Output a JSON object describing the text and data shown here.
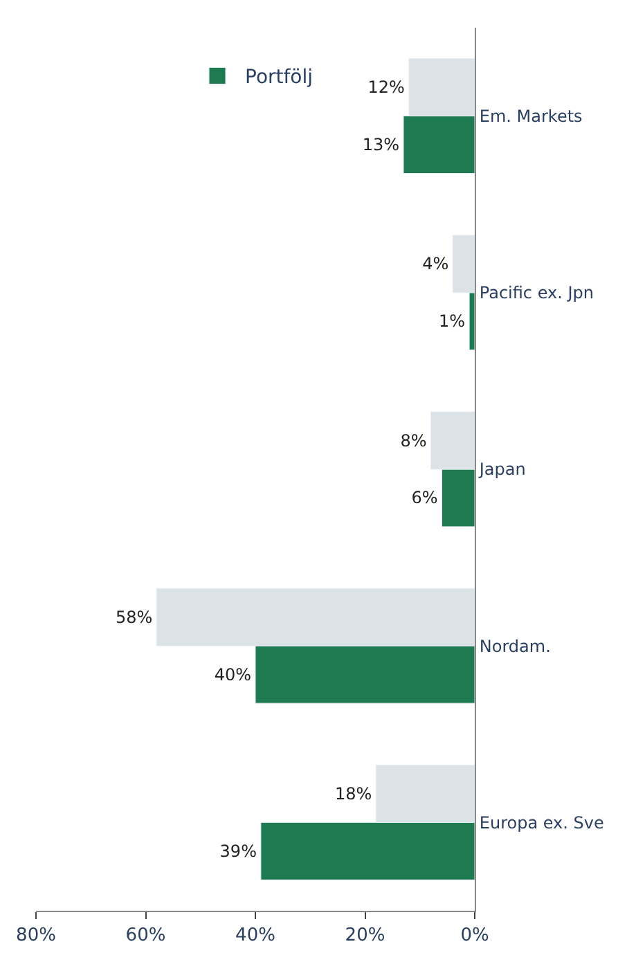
{
  "chart_data": {
    "type": "bar",
    "orientation": "horizontal",
    "categories": [
      "Em. Markets",
      "Pacific ex. Jpn",
      "Japan",
      "Nordam.",
      "Europa ex. Sve"
    ],
    "series": [
      {
        "name": "Portfölj",
        "color": "#1e7a50",
        "values": [
          13,
          1,
          6,
          40,
          39
        ],
        "value_labels": [
          "13%",
          "1%",
          "6%",
          "40%",
          "39%"
        ]
      },
      {
        "color": "#dce3e6",
        "values": [
          12,
          4,
          8,
          58,
          18
        ],
        "value_labels": [
          "12%",
          "4%",
          "8%",
          "58%",
          "18%"
        ]
      }
    ],
    "xlim": [
      80,
      0
    ],
    "xticks": [
      {
        "value": 80,
        "label": "80%"
      },
      {
        "value": 60,
        "label": "60%"
      },
      {
        "value": 40,
        "label": "40%"
      },
      {
        "value": 20,
        "label": "20%"
      },
      {
        "value": 0,
        "label": "0%"
      }
    ],
    "legend": "top"
  }
}
